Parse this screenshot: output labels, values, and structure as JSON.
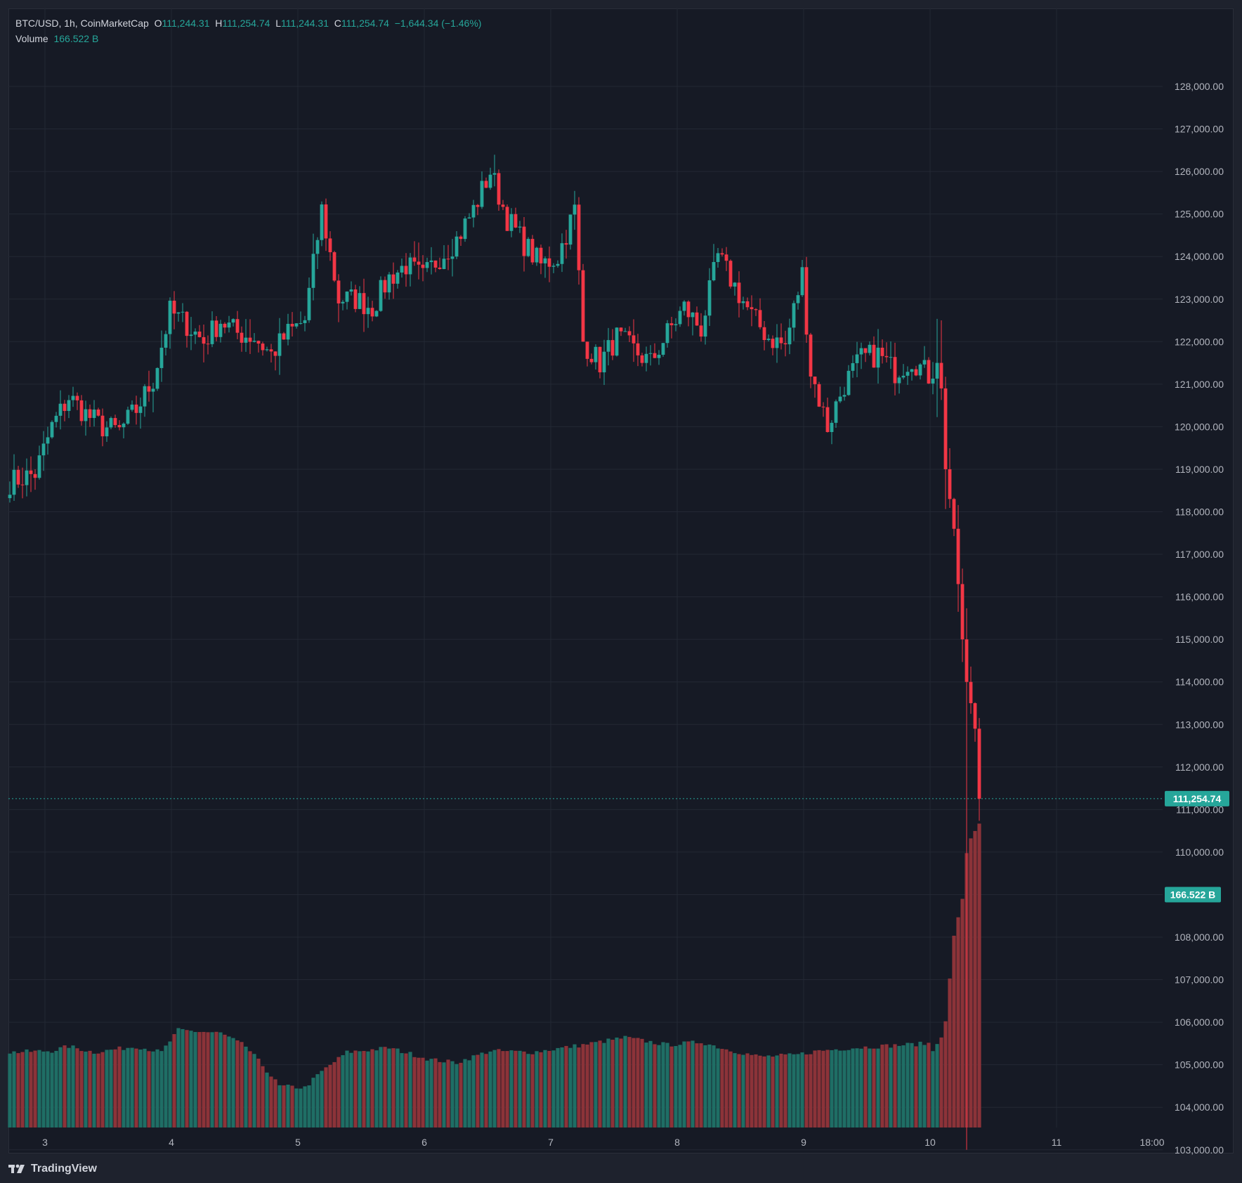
{
  "header": {
    "symbol": "BTC/USD, 1h, CoinMarketCap",
    "open_label": "O",
    "open": "111,244.31",
    "high_label": "H",
    "high": "111,254.74",
    "low_label": "L",
    "low": "111,244.31",
    "close_label": "C",
    "close": "111,254.74",
    "change": "−1,644.34 (−1.46%)",
    "volume_label": "Volume",
    "volume": "166.522 B"
  },
  "price_tag": "111,254.74",
  "volume_tag": "166.522 B",
  "branding": "TradingView",
  "colors": {
    "up": "#26a69a",
    "down": "#f23645",
    "vol_up": "#1f6e65",
    "vol_down": "#8c3339",
    "background": "#161a25",
    "grid": "#232834",
    "text": "#b2b5be"
  },
  "chart_data": {
    "type": "candlestick",
    "interval": "1h",
    "y_ticks": [
      "128,000.00",
      "127,000.00",
      "126,000.00",
      "125,000.00",
      "124,000.00",
      "123,000.00",
      "122,000.00",
      "121,000.00",
      "120,000.00",
      "119,000.00",
      "118,000.00",
      "117,000.00",
      "116,000.00",
      "115,000.00",
      "114,000.00",
      "113,000.00",
      "112,000.00",
      "111,000.00",
      "110,000.00",
      "108,000.00",
      "107,000.00",
      "106,000.00",
      "105,000.00",
      "104,000.00",
      "103,000.00"
    ],
    "x_ticks": [
      "3",
      "4",
      "5",
      "6",
      "7",
      "8",
      "9",
      "10",
      "11",
      "18:00"
    ],
    "price_range": [
      102500,
      128500
    ],
    "close_path": [
      [
        0,
        118700
      ],
      [
        6,
        118900
      ],
      [
        10,
        120000
      ],
      [
        14,
        120700
      ],
      [
        18,
        120300
      ],
      [
        22,
        120000
      ],
      [
        26,
        119900
      ],
      [
        30,
        120400
      ],
      [
        34,
        121100
      ],
      [
        38,
        122700
      ],
      [
        42,
        122400
      ],
      [
        46,
        122000
      ],
      [
        50,
        122500
      ],
      [
        54,
        122200
      ],
      [
        58,
        122100
      ],
      [
        62,
        121700
      ],
      [
        66,
        122200
      ],
      [
        70,
        122500
      ],
      [
        74,
        125100
      ],
      [
        78,
        123000
      ],
      [
        82,
        123000
      ],
      [
        86,
        122800
      ],
      [
        90,
        123500
      ],
      [
        94,
        123800
      ],
      [
        98,
        123500
      ],
      [
        102,
        124000
      ],
      [
        106,
        124400
      ],
      [
        110,
        125100
      ],
      [
        114,
        126000
      ],
      [
        118,
        124900
      ],
      [
        122,
        124300
      ],
      [
        126,
        123800
      ],
      [
        130,
        124000
      ],
      [
        134,
        125100
      ],
      [
        136,
        122000
      ],
      [
        140,
        121500
      ],
      [
        144,
        122100
      ],
      [
        148,
        121800
      ],
      [
        152,
        121500
      ],
      [
        156,
        122200
      ],
      [
        160,
        122800
      ],
      [
        164,
        122300
      ],
      [
        168,
        124000
      ],
      [
        172,
        123300
      ],
      [
        176,
        122600
      ],
      [
        180,
        122100
      ],
      [
        184,
        121900
      ],
      [
        188,
        123600
      ],
      [
        190,
        121300
      ],
      [
        194,
        120000
      ],
      [
        198,
        121000
      ],
      [
        202,
        121600
      ],
      [
        206,
        121700
      ],
      [
        210,
        121300
      ],
      [
        214,
        121600
      ],
      [
        218,
        121200
      ],
      [
        220,
        121500
      ],
      [
        221,
        120900
      ],
      [
        222,
        119000
      ],
      [
        224,
        117600
      ],
      [
        226,
        115000
      ],
      [
        227,
        114000
      ],
      [
        228,
        113500
      ],
      [
        229,
        112900
      ],
      [
        230,
        111254
      ]
    ],
    "volume_path": [
      [
        0,
        0.51
      ],
      [
        10,
        0.52
      ],
      [
        14,
        0.55
      ],
      [
        20,
        0.51
      ],
      [
        30,
        0.55
      ],
      [
        36,
        0.51
      ],
      [
        40,
        0.66
      ],
      [
        50,
        0.64
      ],
      [
        56,
        0.55
      ],
      [
        60,
        0.42
      ],
      [
        64,
        0.28
      ],
      [
        70,
        0.27
      ],
      [
        74,
        0.38
      ],
      [
        80,
        0.51
      ],
      [
        90,
        0.54
      ],
      [
        100,
        0.46
      ],
      [
        106,
        0.44
      ],
      [
        114,
        0.52
      ],
      [
        124,
        0.51
      ],
      [
        136,
        0.56
      ],
      [
        146,
        0.61
      ],
      [
        156,
        0.56
      ],
      [
        164,
        0.58
      ],
      [
        170,
        0.53
      ],
      [
        178,
        0.48
      ],
      [
        186,
        0.49
      ],
      [
        192,
        0.52
      ],
      [
        200,
        0.54
      ],
      [
        206,
        0.55
      ],
      [
        212,
        0.56
      ],
      [
        218,
        0.57
      ],
      [
        219,
        0.52
      ],
      [
        220,
        0.58
      ],
      [
        221,
        0.62
      ],
      [
        222,
        0.72
      ],
      [
        224,
        1.3
      ],
      [
        226,
        1.55
      ],
      [
        227,
        1.86
      ],
      [
        228,
        1.96
      ],
      [
        230,
        2.06
      ]
    ]
  }
}
